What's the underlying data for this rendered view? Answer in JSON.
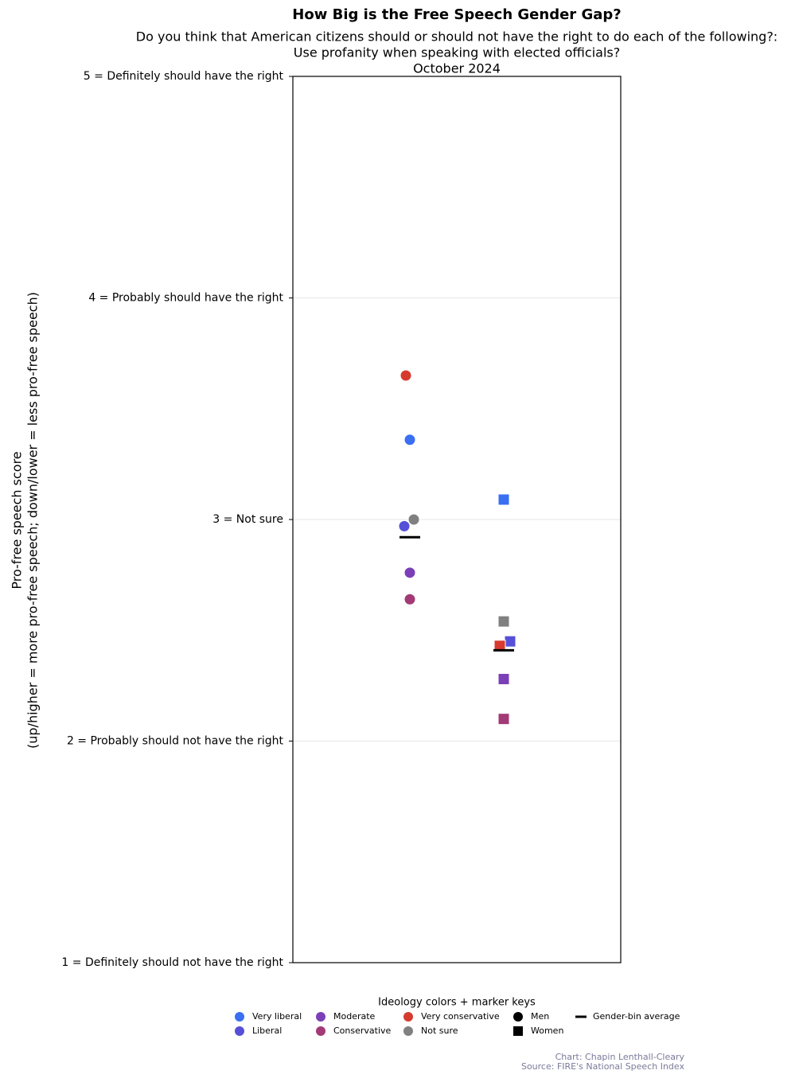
{
  "chart_data": {
    "type": "strip",
    "title": "How Big is the Free Speech Gender Gap?",
    "subtitle": [
      "Do you think that American citizens should or should not have the right to do each of the following?:",
      "Use profanity when speaking with elected officials?",
      "October 2024"
    ],
    "y_label": [
      "Pro-free speech score",
      "(up/higher = more pro-free speech; down/lower = less pro-free speech)"
    ],
    "ylim": [
      1,
      5
    ],
    "yticks": [
      {
        "value": 1,
        "label": "1 = Definitely should not have the right"
      },
      {
        "value": 2,
        "label": "2 = Probably should not have the right"
      },
      {
        "value": 3,
        "label": "3 = Not sure"
      },
      {
        "value": 4,
        "label": "4 = Probably should have the right"
      },
      {
        "value": 5,
        "label": "5 = Definitely should have the right"
      }
    ],
    "grid": true,
    "groups": [
      {
        "name": "Men",
        "marker": "circle"
      },
      {
        "name": "Women",
        "marker": "square"
      }
    ],
    "series": [
      {
        "name": "Very liberal",
        "color": "#3a6ff2",
        "values": [
          3.36,
          3.09
        ]
      },
      {
        "name": "Liberal",
        "color": "#5650d8",
        "values": [
          2.97,
          2.45
        ]
      },
      {
        "name": "Moderate",
        "color": "#7b3fb8",
        "values": [
          2.76,
          2.28
        ]
      },
      {
        "name": "Conservative",
        "color": "#a23a76",
        "values": [
          2.64,
          2.1
        ]
      },
      {
        "name": "Very conservative",
        "color": "#d63a2f",
        "values": [
          3.65,
          2.43
        ]
      },
      {
        "name": "Not sure",
        "color": "#808080",
        "values": [
          3.0,
          2.54
        ]
      }
    ],
    "averages": {
      "name": "Gender-bin average",
      "color": "#000000",
      "values": [
        2.92,
        2.41
      ]
    },
    "legend_title": "Ideology colors + marker keys",
    "credits": [
      "Chart: Chapin Lenthall-Cleary",
      "Source: FIRE's National Speech Index"
    ]
  }
}
